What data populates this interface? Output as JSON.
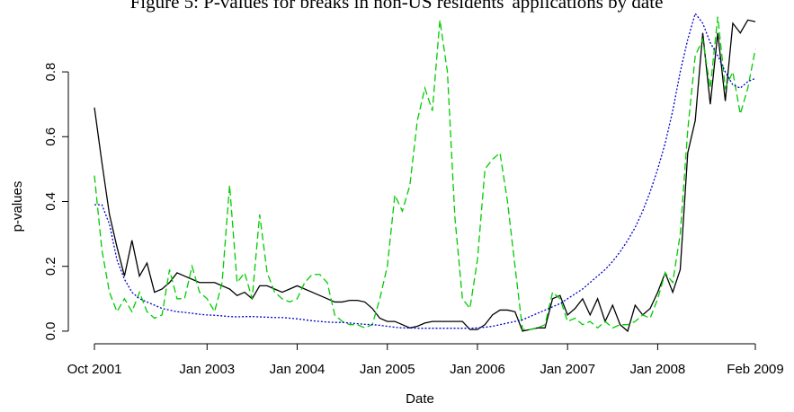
{
  "chart_data": {
    "type": "line",
    "title": "Figure 5: P-values for breaks in non-US residents' applications by date",
    "x_label": "Date",
    "y_label": "p-values",
    "x": [
      "2001-10",
      "2001-11",
      "2001-12",
      "2002-01",
      "2002-02",
      "2002-03",
      "2002-04",
      "2002-05",
      "2002-06",
      "2002-07",
      "2002-08",
      "2002-09",
      "2002-10",
      "2002-11",
      "2002-12",
      "2003-01",
      "2003-02",
      "2003-03",
      "2003-04",
      "2003-05",
      "2003-06",
      "2003-07",
      "2003-08",
      "2003-09",
      "2003-10",
      "2003-11",
      "2003-12",
      "2004-01",
      "2004-02",
      "2004-03",
      "2004-04",
      "2004-05",
      "2004-06",
      "2004-07",
      "2004-08",
      "2004-09",
      "2004-10",
      "2004-11",
      "2004-12",
      "2005-01",
      "2005-02",
      "2005-03",
      "2005-04",
      "2005-05",
      "2005-06",
      "2005-07",
      "2005-08",
      "2005-09",
      "2005-10",
      "2005-11",
      "2005-12",
      "2006-01",
      "2006-02",
      "2006-03",
      "2006-04",
      "2006-05",
      "2006-06",
      "2006-07",
      "2006-08",
      "2006-09",
      "2006-10",
      "2006-11",
      "2006-12",
      "2007-01",
      "2007-02",
      "2007-03",
      "2007-04",
      "2007-05",
      "2007-06",
      "2007-07",
      "2007-08",
      "2007-09",
      "2007-10",
      "2007-11",
      "2007-12",
      "2008-01",
      "2008-02",
      "2008-03",
      "2008-04",
      "2008-05",
      "2008-06",
      "2008-07",
      "2008-08",
      "2008-09",
      "2008-10",
      "2008-11",
      "2008-12",
      "2009-01",
      "2009-02"
    ],
    "series": [
      {
        "color": "#000000",
        "style": "solid",
        "values": [
          0.69,
          0.52,
          0.36,
          0.26,
          0.17,
          0.28,
          0.17,
          0.21,
          0.12,
          0.13,
          0.15,
          0.18,
          0.17,
          0.16,
          0.15,
          0.15,
          0.15,
          0.14,
          0.13,
          0.11,
          0.12,
          0.1,
          0.14,
          0.14,
          0.13,
          0.12,
          0.13,
          0.14,
          0.13,
          0.12,
          0.11,
          0.1,
          0.09,
          0.09,
          0.095,
          0.095,
          0.09,
          0.07,
          0.04,
          0.03,
          0.03,
          0.02,
          0.01,
          0.015,
          0.025,
          0.03,
          0.03,
          0.03,
          0.03,
          0.03,
          0.005,
          0.005,
          0.02,
          0.05,
          0.065,
          0.065,
          0.06,
          0.0,
          0.005,
          0.01,
          0.01,
          0.1,
          0.11,
          0.05,
          0.07,
          0.1,
          0.05,
          0.1,
          0.03,
          0.08,
          0.02,
          0.0,
          0.08,
          0.05,
          0.07,
          0.12,
          0.18,
          0.12,
          0.19,
          0.55,
          0.65,
          0.92,
          0.7,
          0.92,
          0.71,
          0.95,
          0.92,
          0.96,
          0.955
        ]
      },
      {
        "color": "#00cc00",
        "style": "dashed",
        "values": [
          0.48,
          0.25,
          0.12,
          0.06,
          0.1,
          0.06,
          0.12,
          0.06,
          0.04,
          0.05,
          0.19,
          0.1,
          0.1,
          0.2,
          0.12,
          0.1,
          0.06,
          0.15,
          0.45,
          0.15,
          0.18,
          0.1,
          0.36,
          0.18,
          0.12,
          0.1,
          0.09,
          0.1,
          0.15,
          0.175,
          0.175,
          0.15,
          0.05,
          0.03,
          0.02,
          0.02,
          0.01,
          0.02,
          0.1,
          0.2,
          0.42,
          0.37,
          0.45,
          0.65,
          0.75,
          0.68,
          0.96,
          0.8,
          0.35,
          0.1,
          0.07,
          0.22,
          0.5,
          0.53,
          0.55,
          0.4,
          0.2,
          0.005,
          0.005,
          0.01,
          0.02,
          0.12,
          0.1,
          0.03,
          0.04,
          0.02,
          0.03,
          0.01,
          0.03,
          0.01,
          0.02,
          0.02,
          0.03,
          0.05,
          0.04,
          0.1,
          0.18,
          0.15,
          0.3,
          0.62,
          0.85,
          0.9,
          0.75,
          0.97,
          0.75,
          0.8,
          0.67,
          0.75,
          0.87
        ]
      },
      {
        "color": "#0000cc",
        "style": "dotted",
        "values": [
          0.39,
          0.39,
          0.33,
          0.22,
          0.16,
          0.12,
          0.1,
          0.09,
          0.08,
          0.07,
          0.065,
          0.06,
          0.058,
          0.055,
          0.052,
          0.05,
          0.049,
          0.047,
          0.045,
          0.044,
          0.045,
          0.045,
          0.044,
          0.043,
          0.042,
          0.042,
          0.04,
          0.038,
          0.035,
          0.032,
          0.03,
          0.028,
          0.027,
          0.027,
          0.025,
          0.023,
          0.021,
          0.02,
          0.018,
          0.015,
          0.012,
          0.01,
          0.01,
          0.009,
          0.009,
          0.009,
          0.009,
          0.009,
          0.009,
          0.009,
          0.009,
          0.01,
          0.012,
          0.015,
          0.02,
          0.025,
          0.03,
          0.035,
          0.045,
          0.055,
          0.065,
          0.075,
          0.085,
          0.1,
          0.115,
          0.13,
          0.15,
          0.17,
          0.19,
          0.215,
          0.245,
          0.28,
          0.32,
          0.37,
          0.43,
          0.5,
          0.58,
          0.68,
          0.8,
          0.9,
          0.98,
          0.95,
          0.89,
          0.85,
          0.8,
          0.76,
          0.75,
          0.77,
          0.78
        ]
      }
    ],
    "ylim": [
      -0.039,
      1.019
    ],
    "yticks": [
      {
        "value": 0,
        "label": "0.0"
      },
      0.2,
      0.4,
      0.6,
      0.8
    ],
    "xticks": [
      {
        "value": "2001-10",
        "label": "Oct 2001"
      },
      {
        "value": "2003-01",
        "label": "Jan 2003"
      },
      {
        "value": "2004-01",
        "label": "Jan 2004"
      },
      {
        "value": "2005-01",
        "label": "Jan 2005"
      },
      {
        "value": "2006-01",
        "label": "Jan 2006"
      },
      {
        "value": "2007-01",
        "label": "Jan 2007"
      },
      {
        "value": "2008-01",
        "label": "Jan 2008"
      },
      {
        "value": "2009-02",
        "label": "Feb 2009"
      }
    ],
    "grid": false
  }
}
